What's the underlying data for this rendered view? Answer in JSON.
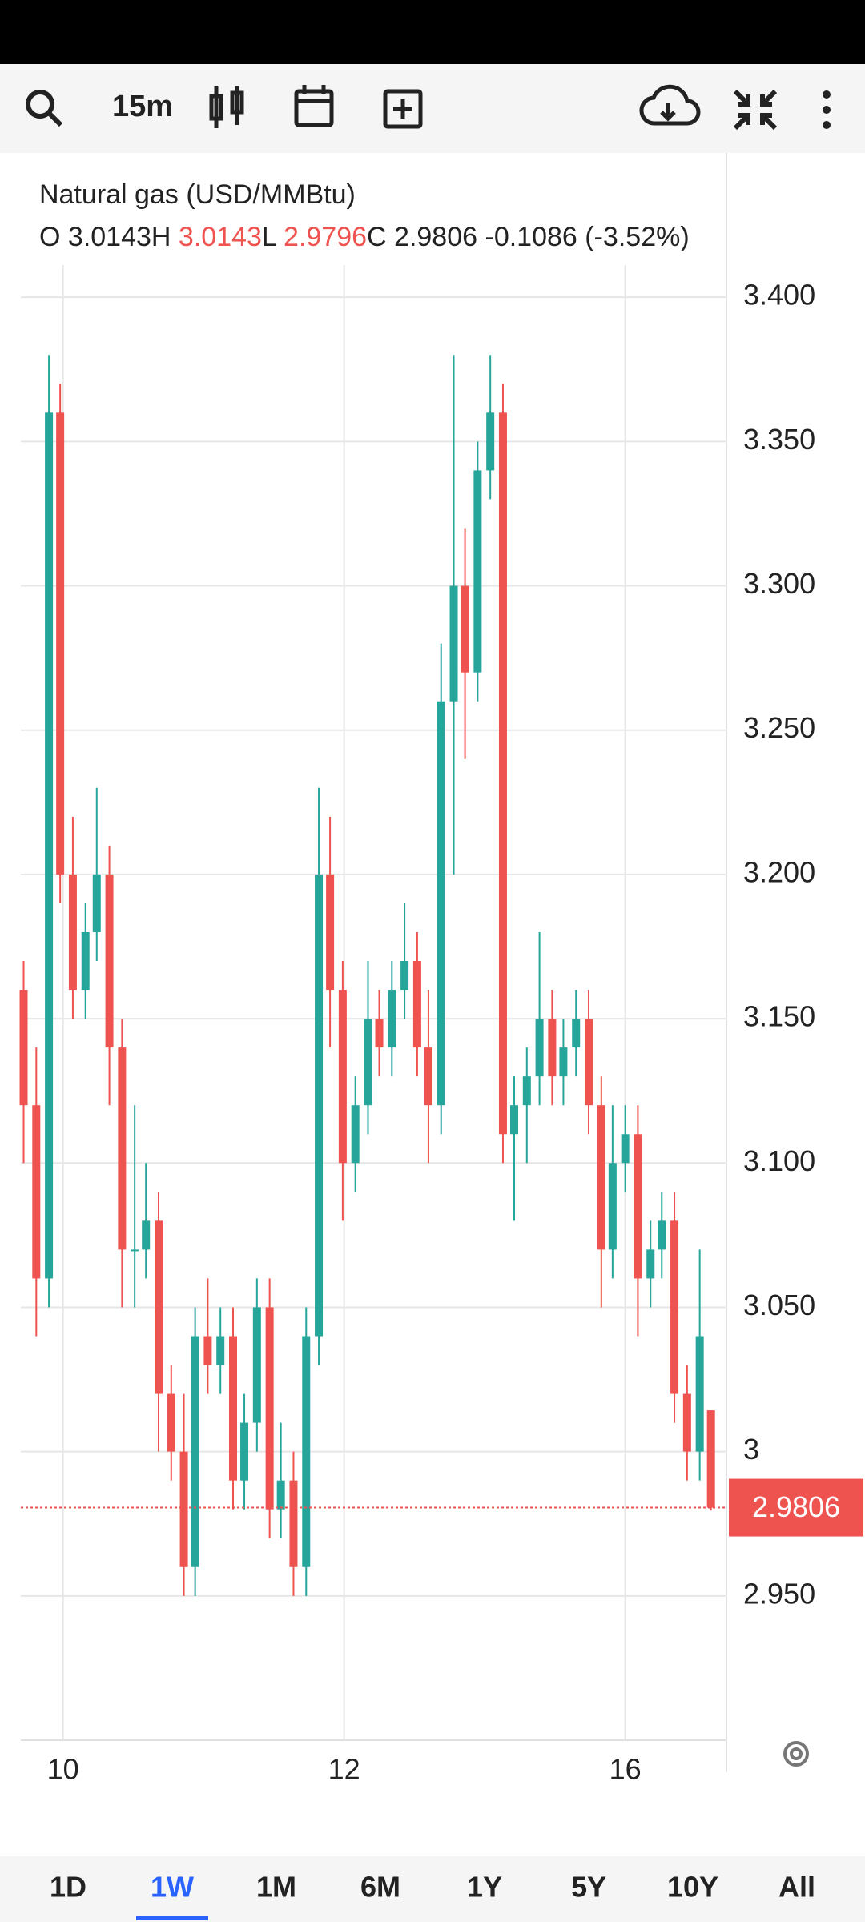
{
  "toolbar": {
    "interval": "15m"
  },
  "chart_data": {
    "type": "candlestick",
    "title": "Natural gas (USD/MMBtu)",
    "ohlc_labels": [
      "O",
      "H",
      "L",
      "C"
    ],
    "ohlc_values": [
      3.0143,
      3.0143,
      2.9796,
      2.9806
    ],
    "change": -0.1086,
    "change_percent": {
      "value": -3.52,
      "label": "(-3.52%)"
    },
    "last_price": 2.9806,
    "x": [
      -0.28,
      -0.19,
      -0.1,
      -0.02,
      0.07,
      0.16,
      0.24,
      0.33,
      0.42,
      0.51,
      0.59,
      0.68,
      0.77,
      0.86,
      0.94,
      1.03,
      1.12,
      1.21,
      1.29,
      1.38,
      1.47,
      1.55,
      1.64,
      1.73,
      1.82,
      1.9,
      1.99,
      2.08,
      2.17,
      2.25,
      2.34,
      2.43,
      2.52,
      2.6,
      2.69,
      2.78,
      2.86,
      2.95,
      3.04,
      3.13,
      3.21,
      3.3,
      3.39,
      3.48,
      3.56,
      3.65,
      3.74,
      3.83,
      3.91,
      4.0,
      4.09,
      4.18,
      4.26,
      4.35,
      4.44,
      4.53,
      4.61
    ],
    "open": [
      3.16,
      3.12,
      3.06,
      3.36,
      3.2,
      3.16,
      3.18,
      3.2,
      3.14,
      3.07,
      3.07,
      3.08,
      3.02,
      3.0,
      2.96,
      3.04,
      3.03,
      3.04,
      2.99,
      3.01,
      3.05,
      2.98,
      2.99,
      2.96,
      3.04,
      3.2,
      3.16,
      3.1,
      3.12,
      3.15,
      3.14,
      3.16,
      3.17,
      3.14,
      3.12,
      3.26,
      3.3,
      3.27,
      3.34,
      3.36,
      3.11,
      3.12,
      3.13,
      3.15,
      3.13,
      3.14,
      3.15,
      3.12,
      3.07,
      3.1,
      3.11,
      3.06,
      3.07,
      3.08,
      3.02,
      3.0,
      3.0143
    ],
    "high": [
      3.17,
      3.14,
      3.38,
      3.37,
      3.22,
      3.19,
      3.23,
      3.21,
      3.15,
      3.12,
      3.1,
      3.09,
      3.03,
      3.02,
      3.05,
      3.06,
      3.05,
      3.05,
      3.02,
      3.06,
      3.06,
      3.01,
      3.0,
      3.05,
      3.23,
      3.22,
      3.17,
      3.13,
      3.17,
      3.16,
      3.17,
      3.19,
      3.18,
      3.16,
      3.28,
      3.38,
      3.32,
      3.35,
      3.38,
      3.37,
      3.13,
      3.14,
      3.18,
      3.16,
      3.15,
      3.16,
      3.16,
      3.13,
      3.12,
      3.12,
      3.12,
      3.08,
      3.09,
      3.09,
      3.03,
      3.07,
      3.0143
    ],
    "low": [
      3.1,
      3.04,
      3.05,
      3.19,
      3.15,
      3.15,
      3.17,
      3.12,
      3.05,
      3.05,
      3.06,
      3.0,
      2.99,
      2.95,
      2.95,
      3.02,
      3.02,
      2.98,
      2.98,
      3.0,
      2.97,
      2.97,
      2.95,
      2.95,
      3.03,
      3.14,
      3.08,
      3.09,
      3.11,
      3.13,
      3.13,
      3.15,
      3.13,
      3.1,
      3.11,
      3.2,
      3.24,
      3.26,
      3.33,
      3.1,
      3.08,
      3.1,
      3.12,
      3.12,
      3.12,
      3.13,
      3.11,
      3.05,
      3.06,
      3.09,
      3.04,
      3.05,
      3.06,
      3.01,
      2.99,
      2.99,
      2.9796
    ],
    "close": [
      3.12,
      3.06,
      3.36,
      3.2,
      3.16,
      3.18,
      3.2,
      3.14,
      3.07,
      3.07,
      3.08,
      3.02,
      3.0,
      2.96,
      3.04,
      3.03,
      3.04,
      2.99,
      3.01,
      3.05,
      2.98,
      2.99,
      2.96,
      3.04,
      3.2,
      3.16,
      3.1,
      3.12,
      3.15,
      3.14,
      3.16,
      3.17,
      3.14,
      3.12,
      3.26,
      3.3,
      3.27,
      3.34,
      3.36,
      3.11,
      3.12,
      3.13,
      3.15,
      3.13,
      3.14,
      3.15,
      3.12,
      3.07,
      3.1,
      3.11,
      3.06,
      3.07,
      3.08,
      3.02,
      3.0,
      3.04,
      2.9806
    ],
    "up_color": "#26a69a",
    "down_color": "#ef5350",
    "xlim": [
      -0.3,
      4.72
    ],
    "xticks": [
      {
        "value": 0,
        "label": "10"
      },
      {
        "value": 2,
        "label": "12"
      },
      {
        "value": 4,
        "label": "16"
      }
    ],
    "ylim": [
      2.9,
      3.45
    ],
    "yticks": [
      {
        "value": 2.95,
        "label": "2.950"
      },
      3,
      {
        "value": 3.05,
        "label": "3.050"
      },
      {
        "value": 3.1,
        "label": "3.100"
      },
      {
        "value": 3.15,
        "label": "3.150"
      },
      {
        "value": 3.2,
        "label": "3.200"
      },
      {
        "value": 3.25,
        "label": "3.250"
      },
      {
        "value": 3.3,
        "label": "3.300"
      },
      {
        "value": 3.35,
        "label": "3.350"
      },
      {
        "value": 3.4,
        "label": "3.400"
      }
    ],
    "grid": true
  },
  "range_selector": {
    "options": [
      "1D",
      "1W",
      "1M",
      "6M",
      "1Y",
      "5Y",
      "10Y",
      "All"
    ],
    "selected": 1
  }
}
